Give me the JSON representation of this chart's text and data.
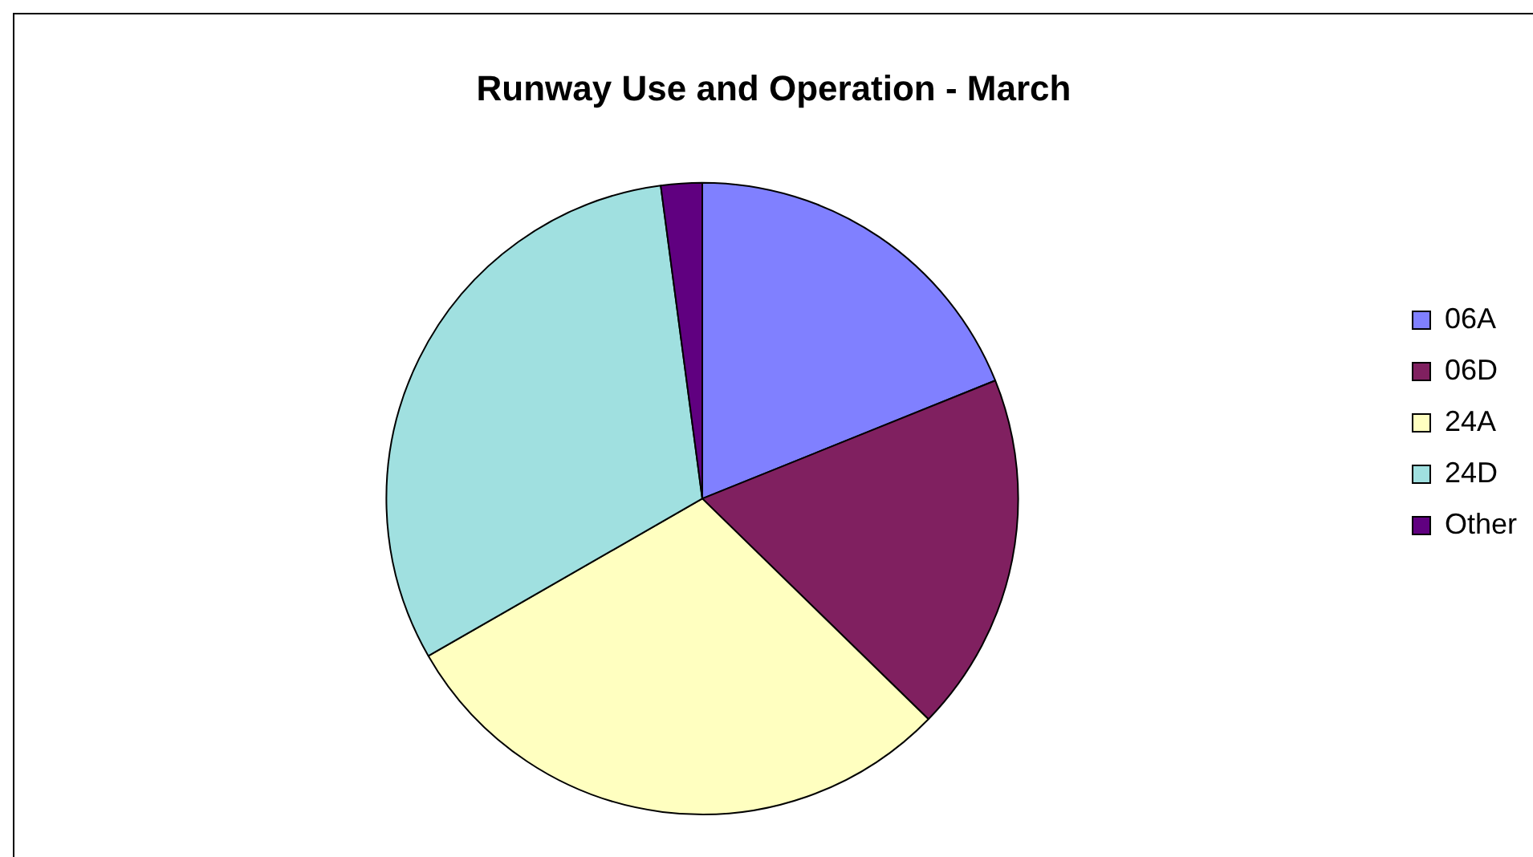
{
  "chart_data": {
    "type": "pie",
    "title": "Runway Use and Operation - March",
    "categories": [
      "06A",
      "06D",
      "24A",
      "24D",
      "Other"
    ],
    "values": [
      18.9,
      18.4,
      29.4,
      31.2,
      2.1
    ],
    "colors": [
      "#8080ff",
      "#802060",
      "#ffffc0",
      "#a0e0e0",
      "#600080"
    ],
    "legend": "right"
  }
}
